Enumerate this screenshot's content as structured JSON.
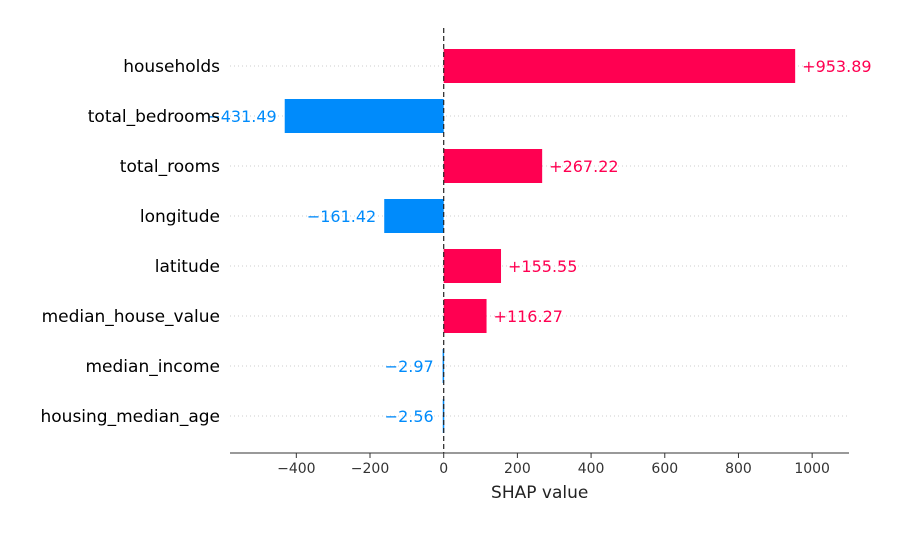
{
  "chart_data": {
    "type": "bar",
    "orientation": "horizontal",
    "features": [
      "households",
      "total_bedrooms",
      "total_rooms",
      "longitude",
      "latitude",
      "median_house_value",
      "median_income",
      "housing_median_age"
    ],
    "values": [
      953.89,
      -431.49,
      267.22,
      -161.42,
      155.55,
      116.27,
      -2.97,
      -2.56
    ],
    "value_labels": [
      "+953.89",
      "−431.49",
      "+267.22",
      "−161.42",
      "+155.55",
      "+116.27",
      "−2.97",
      "−2.56"
    ],
    "xlabel": "SHAP value",
    "xlim": [
      -580,
      1100
    ],
    "xticks": [
      -400,
      -200,
      0,
      200,
      400,
      600,
      800,
      1000
    ],
    "xtick_labels": [
      "−400",
      "−200",
      "0",
      "200",
      "400",
      "600",
      "800",
      "1000"
    ],
    "colors": {
      "positive": "#ff0051",
      "negative": "#008bfb",
      "axis": "#333333",
      "gridline": "#cccccc",
      "feature_text": "#000000",
      "tick_text": "#333333"
    },
    "grid": "dotted feature guide lines"
  }
}
